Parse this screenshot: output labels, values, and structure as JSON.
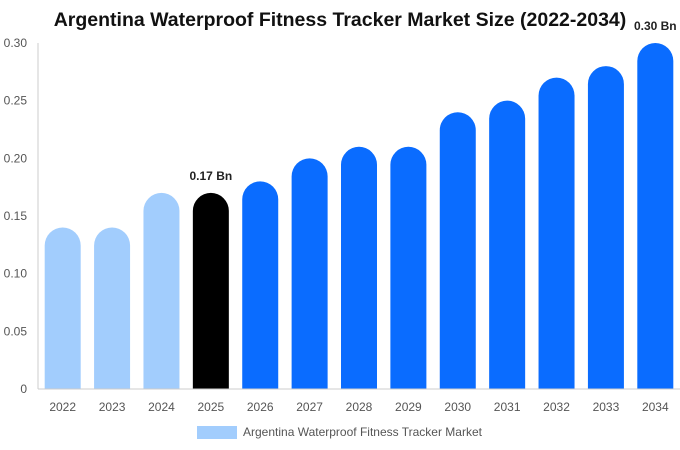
{
  "chart_data": {
    "type": "bar",
    "title": "Argentina Waterproof Fitness Tracker Market Size (2022-2034)",
    "categories": [
      "2022",
      "2023",
      "2024",
      "2025",
      "2026",
      "2027",
      "2028",
      "2029",
      "2030",
      "2031",
      "2032",
      "2033",
      "2034"
    ],
    "series": [
      {
        "name": "Argentina Waterproof Fitness Tracker Market",
        "values": [
          0.14,
          0.14,
          0.17,
          0.17,
          0.18,
          0.2,
          0.21,
          0.21,
          0.24,
          0.25,
          0.27,
          0.28,
          0.3
        ]
      }
    ],
    "bar_colors": [
      "#a2cdfd",
      "#a2cdfd",
      "#a2cdfd",
      "#000000",
      "#0a6cff",
      "#0a6cff",
      "#0a6cff",
      "#0a6cff",
      "#0a6cff",
      "#0a6cff",
      "#0a6cff",
      "#0a6cff",
      "#0a6cff"
    ],
    "data_labels": [
      {
        "category": "2025",
        "text": "0.17 Bn"
      },
      {
        "category": "2034",
        "text": "0.30 Bn"
      }
    ],
    "yticks": [
      "0",
      "0.05",
      "0.10",
      "0.15",
      "0.20",
      "0.25",
      "0.30"
    ],
    "ylim": [
      0,
      0.3
    ],
    "xlabel": "",
    "ylabel": "",
    "grid": false,
    "legend_position": "bottom-center",
    "legend_color": "#a2cdfd"
  }
}
